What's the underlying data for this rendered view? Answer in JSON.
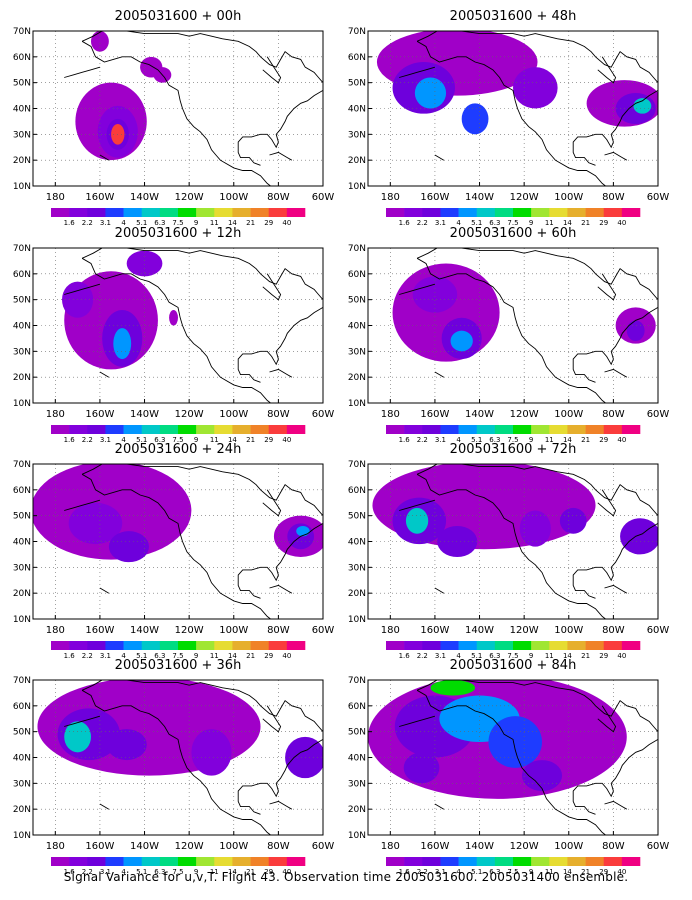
{
  "figure": {
    "caption": "Signal Variance for u,v,T. Flight 43. Observation time 2005031600. 2005031400 ensemble."
  },
  "axes": {
    "y_ticks": [
      "70N",
      "60N",
      "50N",
      "40N",
      "30N",
      "20N",
      "10N"
    ],
    "x_ticks": [
      "180",
      "160W",
      "140W",
      "120W",
      "100W",
      "80W",
      "60W"
    ]
  },
  "colorbar": {
    "labels": [
      "1.6",
      "2.2",
      "3.1",
      "4",
      "5.1",
      "6.3",
      "7.5",
      "9",
      "11",
      "14",
      "21",
      "29",
      "40"
    ],
    "colors": [
      "#a000c8",
      "#8200dc",
      "#6e00dc",
      "#1e3cff",
      "#0096ff",
      "#00c8c8",
      "#00dc82",
      "#00dc00",
      "#a0e632",
      "#e6dc32",
      "#e6af2d",
      "#f08228",
      "#fa3c3c",
      "#f00082"
    ]
  },
  "panels": [
    {
      "title": "2005031600 + 00h"
    },
    {
      "title": "2005031600 + 48h"
    },
    {
      "title": "2005031600 + 12h"
    },
    {
      "title": "2005031600 + 60h"
    },
    {
      "title": "2005031600 + 24h"
    },
    {
      "title": "2005031600 + 72h"
    },
    {
      "title": "2005031600 + 36h"
    },
    {
      "title": "2005031600 + 84h"
    }
  ]
}
